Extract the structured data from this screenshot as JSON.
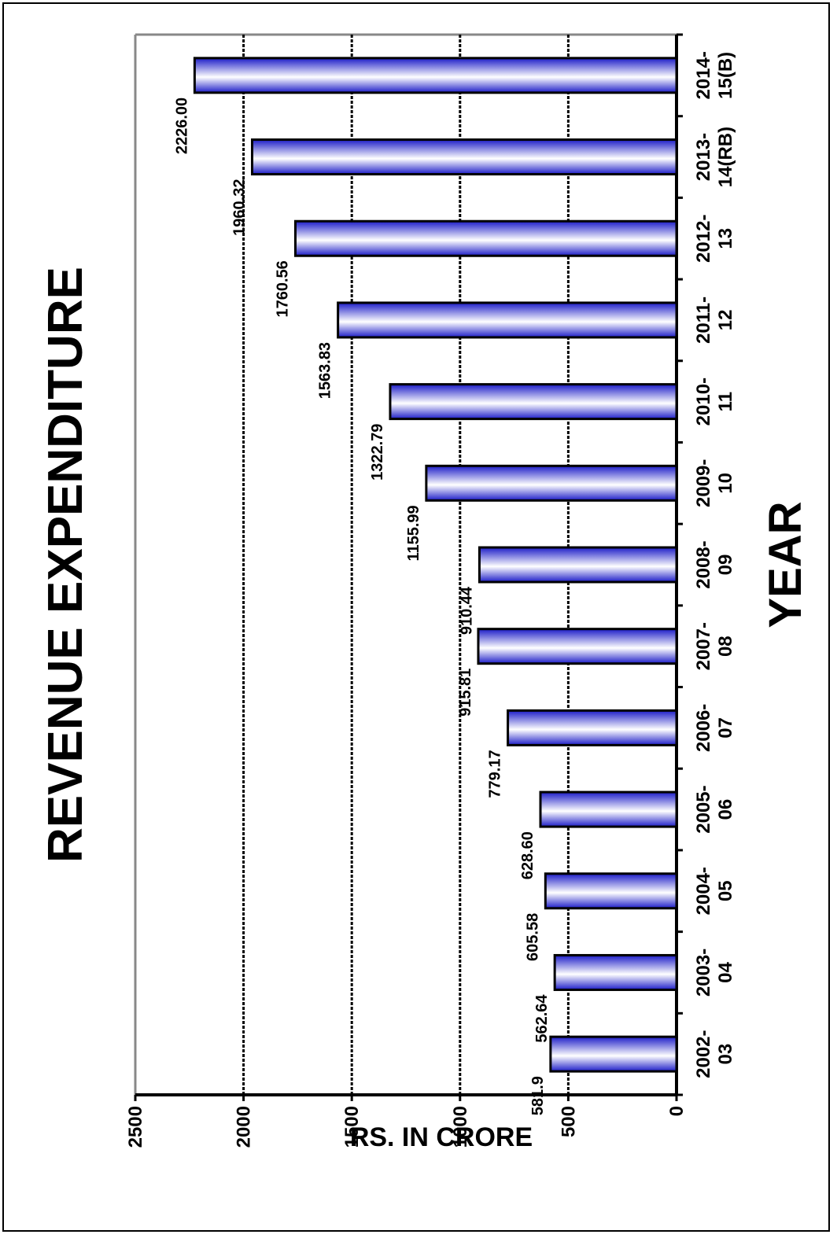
{
  "chart_data": {
    "type": "bar",
    "title": "REVENUE EXPENDITURE",
    "xlabel": "YEAR",
    "ylabel": "RS. IN CRORE",
    "categories": [
      [
        "2002-",
        "03"
      ],
      [
        "2003-",
        "04"
      ],
      [
        "2004-",
        "05"
      ],
      [
        "2005-",
        "06"
      ],
      [
        "2006-",
        "07"
      ],
      [
        "2007-",
        "08"
      ],
      [
        "2008-",
        "09"
      ],
      [
        "2009-",
        "10"
      ],
      [
        "2010-",
        "11"
      ],
      [
        "2011-",
        "12"
      ],
      [
        "2012-",
        "13"
      ],
      [
        "2013-",
        "14(RB)"
      ],
      [
        "2014-",
        "15(B)"
      ]
    ],
    "values": [
      581.9,
      562.64,
      605.58,
      628.6,
      779.17,
      915.81,
      910.44,
      1155.99,
      1322.79,
      1563.83,
      1760.56,
      1960.32,
      2226.0
    ],
    "value_labels": [
      "581.9",
      "562.64",
      "605.58",
      "628.60",
      "779.17",
      "915.81",
      "910.44",
      "1155.99",
      "1322.79",
      "1563.83",
      "1760.56",
      "1960.32",
      "2226.00"
    ],
    "ylim": [
      0,
      2500
    ],
    "yticks": [
      "0",
      "500",
      "1000",
      "1500",
      "2000",
      "2500"
    ],
    "grid": true,
    "orientation": "rotated-90-ccw",
    "bar_color": "#3b3bdc"
  }
}
